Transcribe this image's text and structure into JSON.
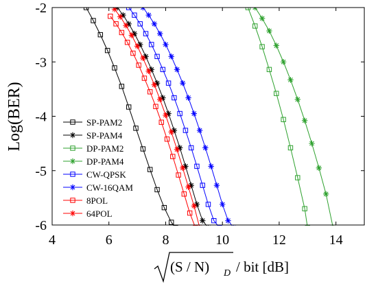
{
  "chart_data": {
    "type": "line",
    "xlabel": "/ bit [dB]",
    "xlabel_sqrt_text": "(S / N)",
    "xlabel_sub": "D",
    "ylabel": "Log(BER)",
    "xlim": [
      4,
      15
    ],
    "ylim": [
      -6,
      -2
    ],
    "xticks": [
      4,
      6,
      8,
      10,
      12,
      14
    ],
    "yticks": [
      -2,
      -3,
      -4,
      -5,
      -6
    ],
    "grid": false,
    "legend_position": "lower-left",
    "series": [
      {
        "name": "SP-PAM2",
        "color": "#000000",
        "marker": "square",
        "x": [
          5.2,
          5.45,
          5.7,
          5.95,
          6.2,
          6.45,
          6.7,
          6.95,
          7.2,
          7.45,
          7.7,
          7.95,
          8.2,
          8.35
        ],
        "y": [
          -2.0,
          -2.24,
          -2.5,
          -2.79,
          -3.11,
          -3.45,
          -3.83,
          -4.22,
          -4.6,
          -4.98,
          -5.35,
          -5.68,
          -5.95,
          -6.05
        ]
      },
      {
        "name": "SP-PAM4",
        "color": "#000000",
        "marker": "star",
        "x": [
          6.3,
          6.5,
          6.7,
          6.9,
          7.1,
          7.3,
          7.5,
          7.7,
          7.9,
          8.1,
          8.3,
          8.5,
          8.7,
          8.9,
          9.1,
          9.3,
          9.5
        ],
        "y": [
          -2.0,
          -2.14,
          -2.3,
          -2.48,
          -2.68,
          -2.9,
          -3.14,
          -3.39,
          -3.66,
          -3.95,
          -4.26,
          -4.58,
          -4.92,
          -5.27,
          -5.62,
          -5.92,
          -6.05
        ]
      },
      {
        "name": "DP-PAM2",
        "color": "#2ca02c",
        "marker": "square",
        "x": [
          10.9,
          11.15,
          11.4,
          11.65,
          11.9,
          12.15,
          12.4,
          12.65,
          12.9,
          13.0
        ],
        "y": [
          -2.0,
          -2.34,
          -2.72,
          -3.14,
          -3.58,
          -4.06,
          -4.58,
          -5.13,
          -5.7,
          -6.05
        ]
      },
      {
        "name": "DP-PAM4",
        "color": "#2ca02c",
        "marker": "star",
        "x": [
          11.15,
          11.4,
          11.65,
          11.9,
          12.15,
          12.4,
          12.65,
          12.9,
          13.15,
          13.4,
          13.65,
          13.9
        ],
        "y": [
          -2.0,
          -2.2,
          -2.43,
          -2.7,
          -3.0,
          -3.33,
          -3.69,
          -4.08,
          -4.5,
          -4.95,
          -5.43,
          -6.05
        ]
      },
      {
        "name": "CW-QPSK",
        "color": "#0000ff",
        "marker": "square",
        "x": [
          6.7,
          6.9,
          7.1,
          7.3,
          7.5,
          7.7,
          7.9,
          8.1,
          8.3,
          8.5,
          8.7,
          8.9,
          9.1,
          9.3,
          9.5,
          9.7,
          9.9
        ],
        "y": [
          -2.0,
          -2.14,
          -2.3,
          -2.48,
          -2.68,
          -2.9,
          -3.14,
          -3.39,
          -3.66,
          -3.95,
          -4.26,
          -4.58,
          -4.92,
          -5.27,
          -5.62,
          -5.92,
          -6.05
        ]
      },
      {
        "name": "CW-16QAM",
        "color": "#0000ff",
        "marker": "star",
        "x": [
          7.2,
          7.4,
          7.6,
          7.8,
          8.0,
          8.2,
          8.4,
          8.6,
          8.8,
          9.0,
          9.2,
          9.4,
          9.6,
          9.8,
          10.0,
          10.2,
          10.4
        ],
        "y": [
          -2.0,
          -2.14,
          -2.3,
          -2.48,
          -2.68,
          -2.9,
          -3.14,
          -3.39,
          -3.66,
          -3.95,
          -4.26,
          -4.58,
          -4.92,
          -5.27,
          -5.62,
          -5.92,
          -6.05
        ]
      },
      {
        "name": "8POL",
        "color": "#ff0000",
        "marker": "square",
        "x": [
          6.05,
          6.25,
          6.45,
          6.65,
          6.85,
          7.05,
          7.25,
          7.45,
          7.65,
          7.85,
          8.05,
          8.25,
          8.45,
          8.65,
          8.85,
          9.05
        ],
        "y": [
          -2.16,
          -2.3,
          -2.46,
          -2.64,
          -2.84,
          -3.06,
          -3.3,
          -3.55,
          -3.82,
          -4.11,
          -4.42,
          -4.74,
          -5.08,
          -5.43,
          -5.78,
          -6.05
        ]
      },
      {
        "name": "64POL",
        "color": "#ff0000",
        "marker": "star",
        "x": [
          6.2,
          6.4,
          6.6,
          6.8,
          7.0,
          7.2,
          7.4,
          7.6,
          7.8,
          8.0,
          8.2,
          8.4,
          8.6,
          8.8,
          9.0,
          9.2
        ],
        "y": [
          -2.03,
          -2.17,
          -2.33,
          -2.51,
          -2.71,
          -2.93,
          -3.17,
          -3.42,
          -3.69,
          -3.98,
          -4.29,
          -4.61,
          -4.95,
          -5.3,
          -5.65,
          -6.05
        ]
      }
    ]
  }
}
